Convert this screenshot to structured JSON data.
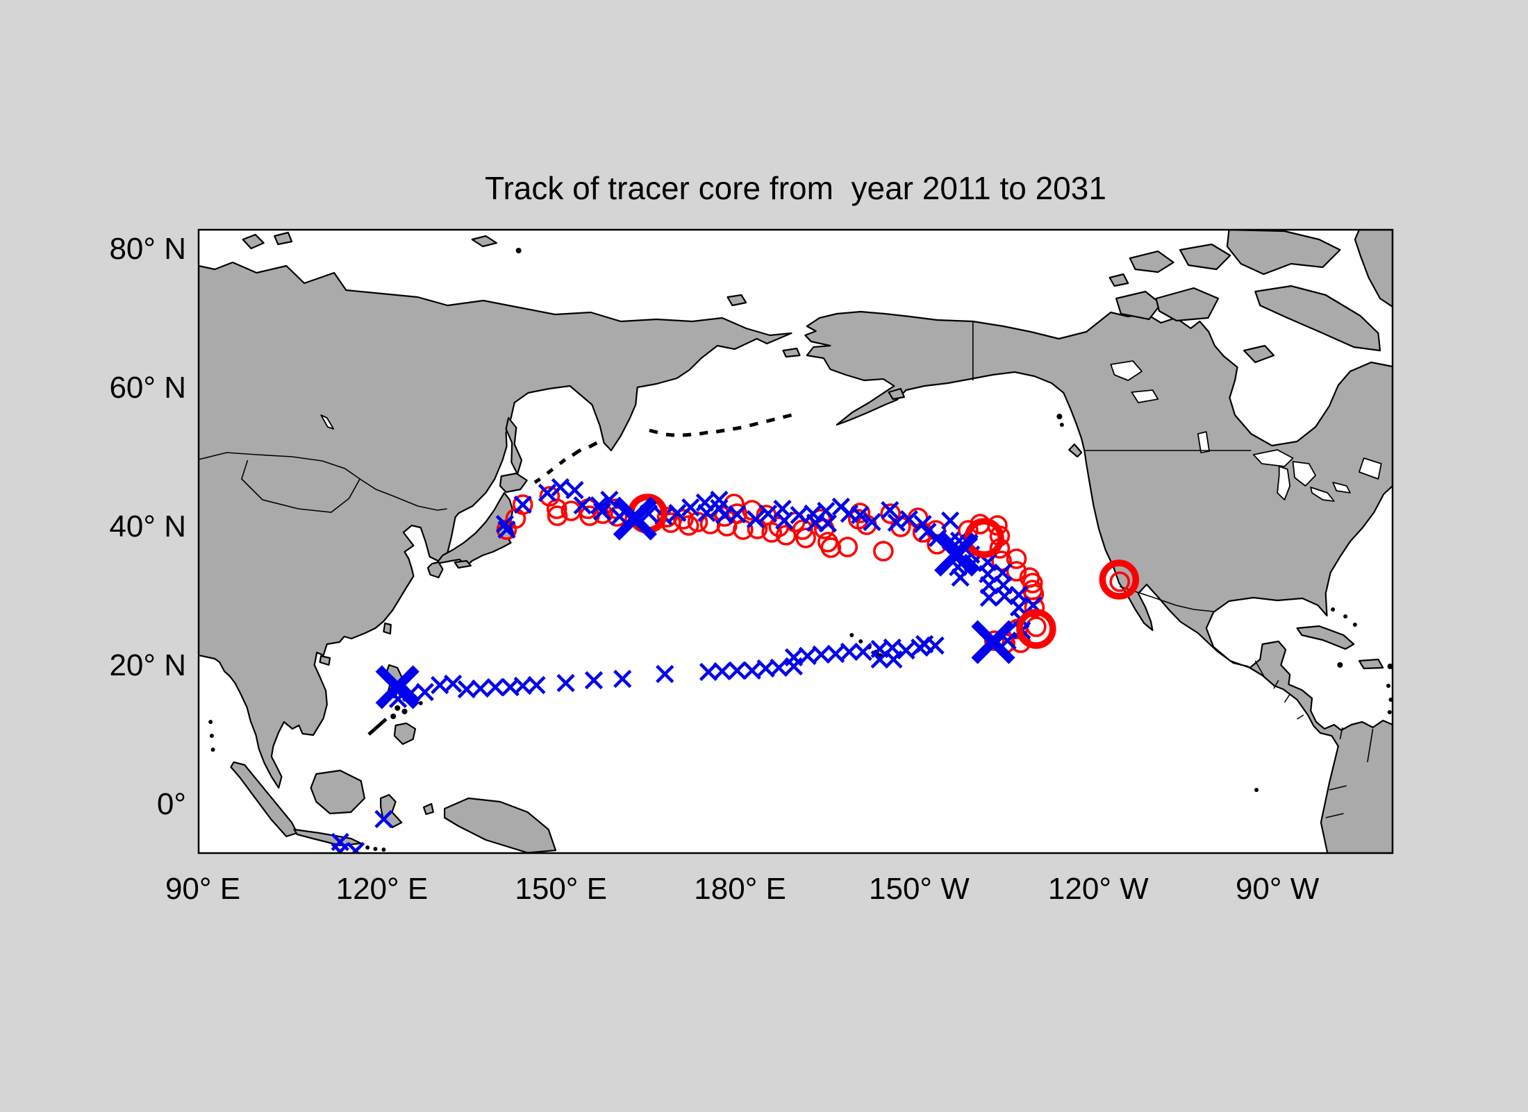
{
  "title": "Track of tracer core from  year 2011 to 2031",
  "colors": {
    "background": "#d5d5d5",
    "ocean": "#ffffff",
    "land": "#aaaaaa",
    "coastline": "#000000",
    "track_x": "#0000ee",
    "track_o": "#ff0000"
  },
  "axes": {
    "x_ticks": [
      {
        "label": "90° E",
        "lon": 90
      },
      {
        "label": "120° E",
        "lon": 120
      },
      {
        "label": "150° E",
        "lon": 150
      },
      {
        "label": "180° E",
        "lon": 180
      },
      {
        "label": "150° W",
        "lon": 210
      },
      {
        "label": "120° W",
        "lon": 240
      },
      {
        "label": "90° W",
        "lon": 270
      }
    ],
    "y_ticks": [
      {
        "label": "80° N",
        "lat": 80
      },
      {
        "label": "60° N",
        "lat": 60
      },
      {
        "label": "40° N",
        "lat": 40
      },
      {
        "label": "20° N",
        "lat": 20
      },
      {
        "label": "0°",
        "lat": 0
      }
    ]
  },
  "chart_data": {
    "type": "scatter",
    "title": "Track of tracer core from  year 2011 to 2031",
    "projection": {
      "lon_range_deg_east": [
        89.3,
        289.3
      ],
      "lat_range": [
        -7.1,
        82.7
      ],
      "note": "lon stored as degrees east 90..290; 210=150W, 240=120W, 270=90W"
    },
    "series": [
      {
        "name": "tracer-track-blue-x",
        "marker": "x",
        "color": "#0000ee",
        "points": [
          [
            122.7,
            15.1
          ],
          [
            124.9,
            16.0
          ],
          [
            127.2,
            16.1
          ],
          [
            129.7,
            17.1
          ],
          [
            131.9,
            17.3
          ],
          [
            134.2,
            16.5
          ],
          [
            136.5,
            16.6
          ],
          [
            139.0,
            16.8
          ],
          [
            141.5,
            16.8
          ],
          [
            143.6,
            17.0
          ],
          [
            145.9,
            17.1
          ],
          [
            150.8,
            17.4
          ],
          [
            155.5,
            17.8
          ],
          [
            160.3,
            18.0
          ],
          [
            167.4,
            18.7
          ],
          [
            174.7,
            19.0
          ],
          [
            177.0,
            19.1
          ],
          [
            179.5,
            19.2
          ],
          [
            182.0,
            19.2
          ],
          [
            184.3,
            19.5
          ],
          [
            186.5,
            19.6
          ],
          [
            189.0,
            19.8
          ],
          [
            189.0,
            21.1
          ],
          [
            191.3,
            21.3
          ],
          [
            193.6,
            21.5
          ],
          [
            196.0,
            21.6
          ],
          [
            198.3,
            21.9
          ],
          [
            200.6,
            21.9
          ],
          [
            203.4,
            22.3
          ],
          [
            203.4,
            20.8
          ],
          [
            205.5,
            22.5
          ],
          [
            205.7,
            20.8
          ],
          [
            207.8,
            22.1
          ],
          [
            210.1,
            22.5
          ],
          [
            210.9,
            23.0
          ],
          [
            212.7,
            22.8
          ],
          [
            224.8,
            23.5
          ],
          [
            227.2,
            25.0
          ],
          [
            227.0,
            26.6
          ],
          [
            229.1,
            28.6
          ],
          [
            226.7,
            28.3
          ],
          [
            226.7,
            30.1
          ],
          [
            224.3,
            29.9
          ],
          [
            221.7,
            29.7
          ],
          [
            221.7,
            31.5
          ],
          [
            224.1,
            31.5
          ],
          [
            221.5,
            33.1
          ],
          [
            224.0,
            33.3
          ],
          [
            221.5,
            34.8
          ],
          [
            219.0,
            34.7
          ],
          [
            216.5,
            34.1
          ],
          [
            216.9,
            32.6
          ],
          [
            218.7,
            35.9
          ],
          [
            218.4,
            37.5
          ],
          [
            216.7,
            37.9
          ],
          [
            215.3,
            37.9
          ],
          [
            215.2,
            40.8
          ],
          [
            213.1,
            38.3
          ],
          [
            211.4,
            39.2
          ],
          [
            210.6,
            40.3
          ],
          [
            208.3,
            41.0
          ],
          [
            206.2,
            40.5
          ],
          [
            205.1,
            42.3
          ],
          [
            202.1,
            40.6
          ],
          [
            200.1,
            41.6
          ],
          [
            198.3,
            41.8
          ],
          [
            196.9,
            42.8
          ],
          [
            194.7,
            40.4
          ],
          [
            194.4,
            42.2
          ],
          [
            192.6,
            40.5
          ],
          [
            192.2,
            41.8
          ],
          [
            189.9,
            41.6
          ],
          [
            187.4,
            40.8
          ],
          [
            187.1,
            42.5
          ],
          [
            184.7,
            41.8
          ],
          [
            182.6,
            41.0
          ],
          [
            179.5,
            41.7
          ],
          [
            177.4,
            41.6
          ],
          [
            176.5,
            42.6
          ],
          [
            176.5,
            43.8
          ],
          [
            174.4,
            41.9
          ],
          [
            174.1,
            43.4
          ],
          [
            171.7,
            42.7
          ],
          [
            169.5,
            41.9
          ],
          [
            167.2,
            41.4
          ],
          [
            164.7,
            41.8
          ],
          [
            159.8,
            41.4
          ],
          [
            158.1,
            43.8
          ],
          [
            156.9,
            42.1
          ],
          [
            156.4,
            43.0
          ],
          [
            153.6,
            43.0
          ],
          [
            152.3,
            45.2
          ],
          [
            149.9,
            45.6
          ],
          [
            147.7,
            44.8
          ],
          [
            143.6,
            43.1
          ],
          [
            140.9,
            39.5
          ],
          [
            140.6,
            40.3
          ],
          [
            120.3,
            -2.2
          ],
          [
            113.0,
            -5.5
          ],
          [
            113.0,
            -6.9
          ],
          [
            115.6,
            -6.8
          ]
        ]
      },
      {
        "name": "tracer-track-blue-x-large",
        "marker": "x-large",
        "color": "#0000ee",
        "points": [
          [
            122.6,
            16.8
          ],
          [
            162.4,
            41.1
          ],
          [
            216.2,
            35.9
          ],
          [
            222.4,
            23.3
          ]
        ]
      },
      {
        "name": "tracer-track-red-o",
        "marker": "o",
        "color": "#ff0000",
        "points": [
          [
            140.9,
            39.5
          ],
          [
            142.4,
            41.1
          ],
          [
            143.6,
            43.1
          ],
          [
            148.1,
            44.3
          ],
          [
            149.3,
            42.5
          ],
          [
            149.4,
            41.5
          ],
          [
            151.7,
            42.2
          ],
          [
            154.5,
            42.5
          ],
          [
            154.8,
            41.5
          ],
          [
            157.0,
            41.8
          ],
          [
            159.2,
            42.5
          ],
          [
            159.4,
            41.4
          ],
          [
            167.8,
            41.3
          ],
          [
            168.4,
            40.5
          ],
          [
            170.5,
            41.0
          ],
          [
            171.4,
            40.1
          ],
          [
            172.9,
            40.6
          ],
          [
            175.0,
            40.3
          ],
          [
            177.4,
            41.4
          ],
          [
            177.8,
            40.0
          ],
          [
            179.0,
            43.2
          ],
          [
            179.5,
            41.8
          ],
          [
            180.5,
            39.5
          ],
          [
            182.0,
            42.3
          ],
          [
            182.9,
            39.6
          ],
          [
            184.4,
            41.6
          ],
          [
            185.3,
            39.1
          ],
          [
            186.5,
            39.9
          ],
          [
            187.7,
            38.7
          ],
          [
            189.2,
            40.6
          ],
          [
            190.5,
            39.5
          ],
          [
            191.0,
            38.3
          ],
          [
            193.5,
            41.0
          ],
          [
            194.1,
            39.6
          ],
          [
            194.7,
            37.7
          ],
          [
            195.2,
            36.9
          ],
          [
            198.0,
            37.0
          ],
          [
            199.8,
            41.0
          ],
          [
            200.1,
            41.9
          ],
          [
            201.2,
            40.2
          ],
          [
            204.0,
            36.4
          ],
          [
            205.2,
            41.8
          ],
          [
            206.9,
            39.9
          ],
          [
            209.8,
            41.2
          ],
          [
            210.6,
            39.1
          ],
          [
            212.8,
            39.4
          ],
          [
            213.0,
            37.4
          ],
          [
            218.2,
            39.4
          ],
          [
            220.2,
            40.3
          ],
          [
            223.1,
            40.1
          ],
          [
            223.5,
            38.6
          ],
          [
            223.5,
            36.8
          ],
          [
            223.8,
            35.0
          ],
          [
            226.3,
            35.3
          ],
          [
            226.3,
            33.5
          ],
          [
            228.5,
            32.6
          ],
          [
            229.0,
            31.8
          ],
          [
            229.0,
            30.8
          ],
          [
            229.2,
            30.2
          ],
          [
            229.3,
            28.3
          ],
          [
            226.5,
            25.2
          ],
          [
            229.6,
            25.5
          ],
          [
            224.4,
            23.1
          ],
          [
            227.0,
            23.2
          ],
          [
            222.6,
            23.5
          ],
          [
            243.6,
            32.0
          ]
        ]
      },
      {
        "name": "tracer-track-red-o-large",
        "marker": "o-large",
        "color": "#ff0000",
        "points": [
          [
            164.5,
            41.8
          ],
          [
            220.9,
            38.3
          ],
          [
            229.6,
            25.2
          ],
          [
            243.5,
            32.3
          ]
        ]
      }
    ]
  }
}
